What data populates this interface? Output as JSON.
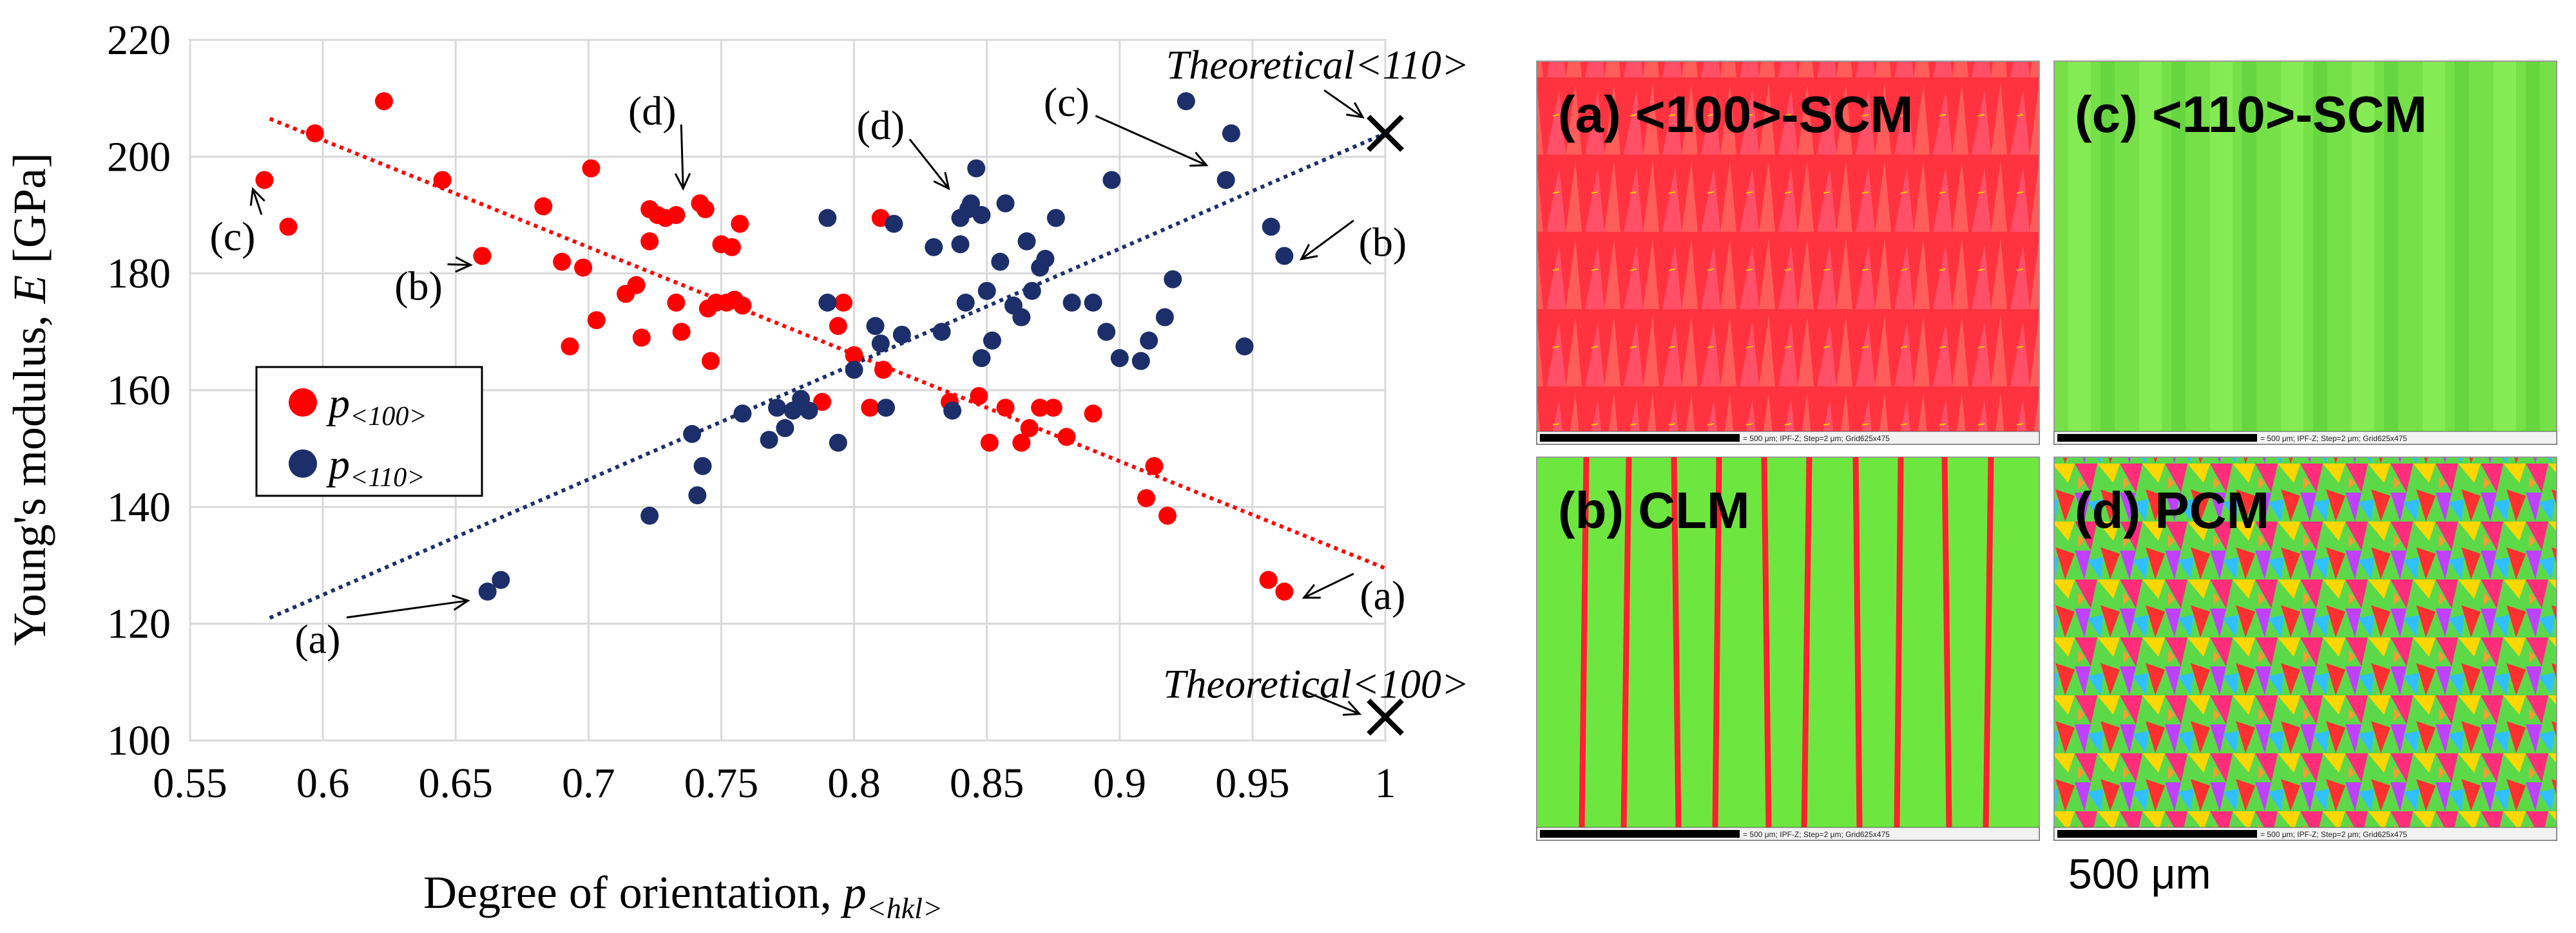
{
  "chart_data": {
    "type": "scatter",
    "xlabel": "Degree of orientation, ",
    "xlabel_symbol": "p",
    "xlabel_sub": "<hkl>",
    "ylabel": "Young's modulus, ",
    "ylabel_symbol": "E",
    "ylabel_unit": " [GPa]",
    "xlim": [
      0.55,
      1.0
    ],
    "ylim": [
      100,
      220
    ],
    "xticks": [
      0.55,
      0.6,
      0.65,
      0.7,
      0.75,
      0.8,
      0.85,
      0.9,
      0.95,
      1.0
    ],
    "xtick_labels": [
      "0.55",
      "0.6",
      "0.65",
      "0.7",
      "0.75",
      "0.8",
      "0.85",
      "0.9",
      "0.95",
      "1"
    ],
    "yticks": [
      100,
      120,
      140,
      160,
      180,
      200,
      220
    ],
    "ytick_labels": [
      "100",
      "120",
      "140",
      "160",
      "180",
      "200",
      "220"
    ],
    "grid": true,
    "legend_position": "middle-left",
    "series": [
      {
        "name": "p",
        "name_sub": "<100>",
        "color": "#ff0000",
        "trendline": {
          "x": [
            0.58,
            1.0
          ],
          "y": [
            206.5,
            129.5
          ]
        },
        "points": [
          [
            0.578,
            196
          ],
          [
            0.587,
            188
          ],
          [
            0.597,
            204
          ],
          [
            0.623,
            209.5
          ],
          [
            0.645,
            196
          ],
          [
            0.66,
            183
          ],
          [
            0.683,
            191.5
          ],
          [
            0.69,
            182
          ],
          [
            0.693,
            167.5
          ],
          [
            0.698,
            181
          ],
          [
            0.701,
            198
          ],
          [
            0.703,
            172
          ],
          [
            0.714,
            176.5
          ],
          [
            0.718,
            178
          ],
          [
            0.72,
            169
          ],
          [
            0.723,
            185.5
          ],
          [
            0.723,
            191
          ],
          [
            0.726,
            190
          ],
          [
            0.729,
            189.5
          ],
          [
            0.733,
            190
          ],
          [
            0.733,
            175
          ],
          [
            0.735,
            170
          ],
          [
            0.742,
            192
          ],
          [
            0.744,
            191
          ],
          [
            0.745,
            174
          ],
          [
            0.746,
            165
          ],
          [
            0.748,
            175
          ],
          [
            0.75,
            185
          ],
          [
            0.752,
            175
          ],
          [
            0.754,
            184.5
          ],
          [
            0.755,
            175.5
          ],
          [
            0.757,
            188.5
          ],
          [
            0.758,
            174.5
          ],
          [
            0.788,
            158
          ],
          [
            0.794,
            171
          ],
          [
            0.796,
            175
          ],
          [
            0.8,
            166
          ],
          [
            0.806,
            157
          ],
          [
            0.81,
            189.5
          ],
          [
            0.811,
            163.5
          ],
          [
            0.836,
            158
          ],
          [
            0.847,
            159
          ],
          [
            0.851,
            151
          ],
          [
            0.857,
            157
          ],
          [
            0.863,
            151
          ],
          [
            0.866,
            153.5
          ],
          [
            0.87,
            157
          ],
          [
            0.875,
            157
          ],
          [
            0.88,
            152
          ],
          [
            0.89,
            156
          ],
          [
            0.91,
            141.5
          ],
          [
            0.913,
            147
          ],
          [
            0.918,
            138.5
          ],
          [
            0.956,
            127.5
          ],
          [
            0.962,
            125.5
          ]
        ]
      },
      {
        "name": "p",
        "name_sub": "<110>",
        "color": "#1c2f6b",
        "trendline": {
          "x": [
            0.58,
            1.0
          ],
          "y": [
            121,
            204
          ]
        },
        "points": [
          [
            0.662,
            125.5
          ],
          [
            0.667,
            127.5
          ],
          [
            0.723,
            138.5
          ],
          [
            0.739,
            152.5
          ],
          [
            0.741,
            142
          ],
          [
            0.743,
            147
          ],
          [
            0.758,
            156
          ],
          [
            0.768,
            151.5
          ],
          [
            0.771,
            157
          ],
          [
            0.774,
            153.5
          ],
          [
            0.777,
            156.5
          ],
          [
            0.78,
            158.5
          ],
          [
            0.783,
            156.5
          ],
          [
            0.79,
            189.5
          ],
          [
            0.79,
            175
          ],
          [
            0.794,
            151
          ],
          [
            0.8,
            163.5
          ],
          [
            0.808,
            171
          ],
          [
            0.81,
            168
          ],
          [
            0.812,
            157
          ],
          [
            0.815,
            188.5
          ],
          [
            0.818,
            169.5
          ],
          [
            0.83,
            184.5
          ],
          [
            0.833,
            170
          ],
          [
            0.837,
            156.5
          ],
          [
            0.84,
            189.5
          ],
          [
            0.84,
            185
          ],
          [
            0.842,
            175
          ],
          [
            0.843,
            191
          ],
          [
            0.844,
            192
          ],
          [
            0.846,
            198
          ],
          [
            0.848,
            190
          ],
          [
            0.848,
            165.5
          ],
          [
            0.85,
            177
          ],
          [
            0.852,
            168.5
          ],
          [
            0.855,
            182
          ],
          [
            0.857,
            192
          ],
          [
            0.86,
            174.5
          ],
          [
            0.863,
            172.5
          ],
          [
            0.865,
            185.5
          ],
          [
            0.867,
            177
          ],
          [
            0.87,
            181
          ],
          [
            0.872,
            182.5
          ],
          [
            0.876,
            189.5
          ],
          [
            0.882,
            175
          ],
          [
            0.89,
            175
          ],
          [
            0.895,
            170
          ],
          [
            0.897,
            196
          ],
          [
            0.9,
            165.5
          ],
          [
            0.908,
            165
          ],
          [
            0.911,
            168.5
          ],
          [
            0.917,
            172.5
          ],
          [
            0.92,
            179
          ],
          [
            0.925,
            209.5
          ],
          [
            0.94,
            196
          ],
          [
            0.942,
            204
          ],
          [
            0.947,
            167.5
          ],
          [
            0.957,
            188
          ],
          [
            0.962,
            183
          ]
        ]
      }
    ],
    "theoretical": [
      {
        "label": "Theoretical<110>",
        "x": 1.0,
        "y": 204
      },
      {
        "label": "Theoretical<100>",
        "x": 1.0,
        "y": 104
      }
    ],
    "annotations": [
      {
        "text": "(a)",
        "x": 0.598,
        "y": 115,
        "to_x": 0.659,
        "to_y": 125.5
      },
      {
        "text": "(b)",
        "x": 0.636,
        "y": 175.5,
        "to_x": 0.66,
        "to_y": 183
      },
      {
        "text": "(c)",
        "x": 0.566,
        "y": 184,
        "to_x": 0.578,
        "to_y": 196
      },
      {
        "text": "(d)",
        "x": 0.724,
        "y": 205.5,
        "to_x": 0.74,
        "to_y": 193
      },
      {
        "text": "(d)",
        "x": 0.81,
        "y": 203,
        "to_x": 0.84,
        "to_y": 193
      },
      {
        "text": "(c)",
        "x": 0.88,
        "y": 207,
        "to_x": 0.937,
        "to_y": 197
      },
      {
        "text": "(b)",
        "x": 0.999,
        "y": 183,
        "to_x": 0.964,
        "to_y": 184
      },
      {
        "text": "(a)",
        "x": 0.999,
        "y": 122.5,
        "to_x": 0.965,
        "to_y": 126
      }
    ]
  },
  "micrographs": [
    {
      "label": "(a) <100>-SCM",
      "scale_text": "= 500 μm; IPF-Z; Step=2 μm; Grid625x475"
    },
    {
      "label": "(c) <110>-SCM",
      "scale_text": "= 500 μm; IPF-Z; Step=2 μm; Grid625x475"
    },
    {
      "label": "(b) CLM",
      "scale_text": "= 500 μm; IPF-Z; Step=2 μm; Grid625x475"
    },
    {
      "label": "(d) PCM",
      "scale_text": "= 500 μm; IPF-Z; Step=2 μm; Grid625x475"
    }
  ],
  "scale_bar_label": "500 μm",
  "colors": {
    "red": "#ff0000",
    "navy": "#1c2f6b",
    "grid": "#d9d9d9",
    "ipf_red": "#ff2b3a",
    "ipf_green": "#6ae23a"
  }
}
